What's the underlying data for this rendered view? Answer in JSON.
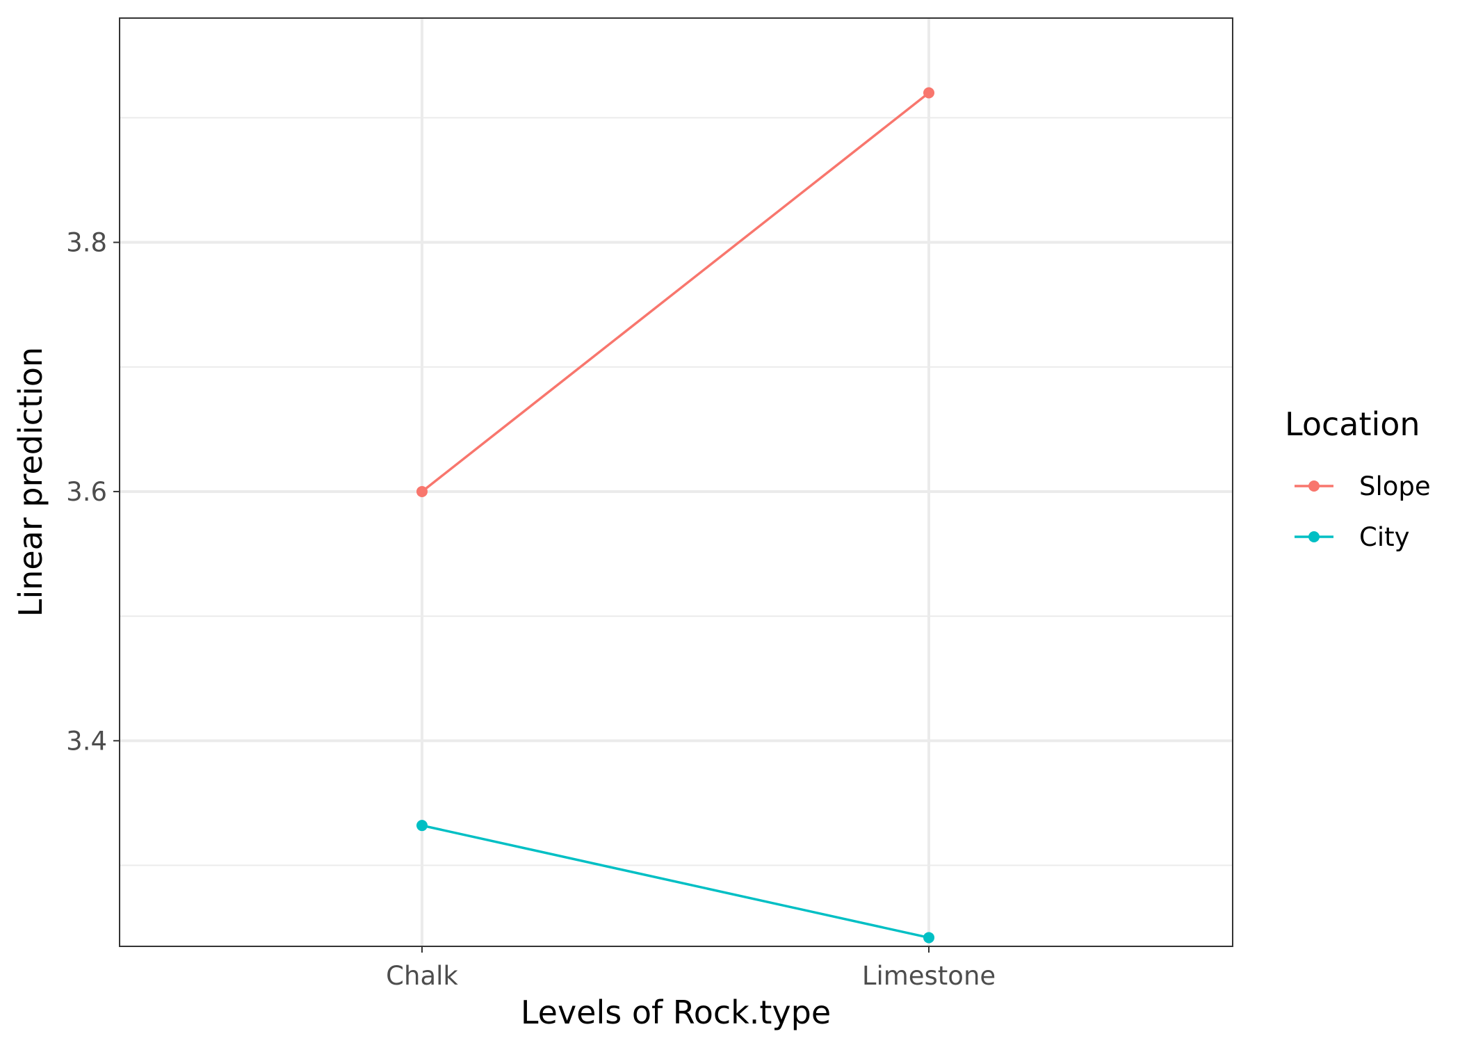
{
  "chart_data": {
    "type": "line",
    "title": "",
    "xlabel": "Levels of Rock.type",
    "ylabel": "Linear prediction",
    "categories": [
      "Chalk",
      "Limestone"
    ],
    "ylim": [
      3.235,
      3.98
    ],
    "y_major_ticks": [
      3.4,
      3.6,
      3.8
    ],
    "y_minor_ticks": [
      3.3,
      3.5,
      3.7,
      3.9
    ],
    "y_tick_labels": [
      "3.4",
      "3.6",
      "3.8"
    ],
    "grid": true,
    "legend": {
      "title": "Location",
      "position": "right"
    },
    "series": [
      {
        "name": "Slope",
        "color": "#F8766D",
        "values": [
          3.6,
          3.92
        ]
      },
      {
        "name": "City",
        "color": "#00BFC4",
        "values": [
          3.332,
          3.242
        ]
      }
    ]
  }
}
